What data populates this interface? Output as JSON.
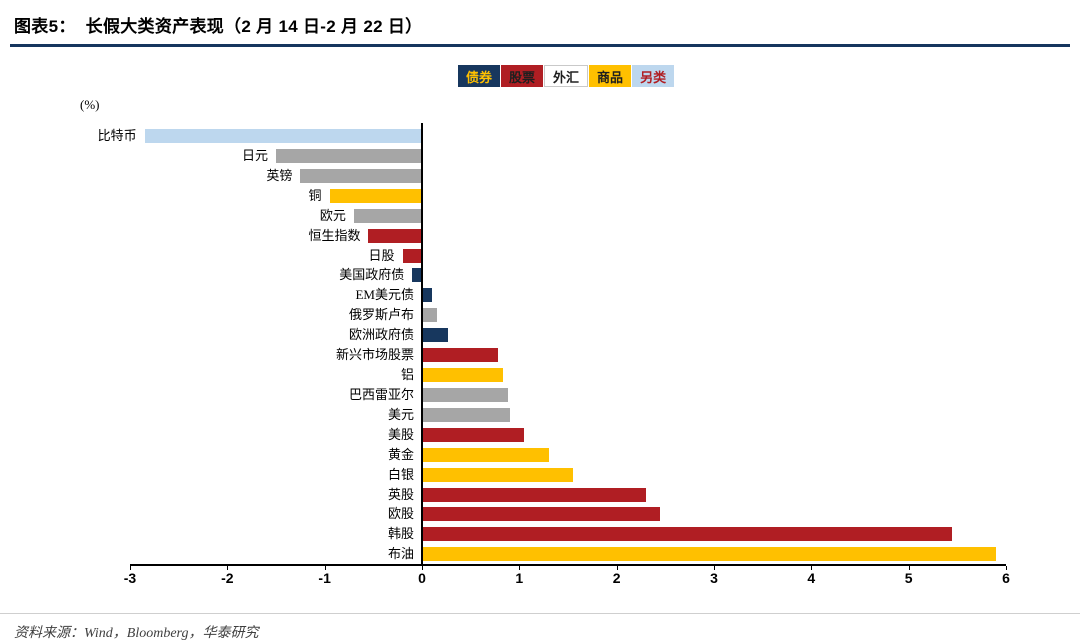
{
  "header": {
    "figure_label": "图表5：",
    "title": "长假大类资产表现（2 月 14 日-2 月 22 日）"
  },
  "chart": {
    "unit_label": "(%)"
  },
  "chart_data": {
    "type": "bar",
    "orientation": "horizontal",
    "title": "长假大类资产表现（2 月 14 日-2 月 22 日）",
    "unit": "%",
    "xlim": [
      -3,
      6
    ],
    "x_ticks": [
      -3,
      -2,
      -1,
      0,
      1,
      2,
      3,
      4,
      5,
      6
    ],
    "grid": false,
    "legend_position": "top",
    "category_colors": {
      "债券": "#17375E",
      "股票": "#B01E23",
      "外汇": "#A6A6A6",
      "商品": "#FFC000",
      "另类": "#BDD7EE"
    },
    "legend": [
      {
        "label": "债券",
        "swatch": "#17375E",
        "text_color": "#FFC000"
      },
      {
        "label": "股票",
        "swatch": "#B01E23",
        "text_color": "#1F1F1F"
      },
      {
        "label": "外汇",
        "swatch": "#FFFFFF",
        "text_color": "#1F1F1F"
      },
      {
        "label": "商品",
        "swatch": "#FFC000",
        "text_color": "#1F1F1F"
      },
      {
        "label": "另类",
        "swatch": "#BDD7EE",
        "text_color": "#B01E23"
      }
    ],
    "bars": [
      {
        "label": "比特币",
        "value": -2.85,
        "category": "另类"
      },
      {
        "label": "日元",
        "value": -1.5,
        "category": "外汇"
      },
      {
        "label": "英镑",
        "value": -1.25,
        "category": "外汇"
      },
      {
        "label": "铜",
        "value": -0.95,
        "category": "商品"
      },
      {
        "label": "欧元",
        "value": -0.7,
        "category": "外汇"
      },
      {
        "label": "恒生指数",
        "value": -0.55,
        "category": "股票"
      },
      {
        "label": "日股",
        "value": -0.2,
        "category": "股票"
      },
      {
        "label": "美国政府债",
        "value": -0.1,
        "category": "债券"
      },
      {
        "label": "EM美元债",
        "value": 0.1,
        "category": "债券"
      },
      {
        "label": "俄罗斯卢布",
        "value": 0.15,
        "category": "外汇"
      },
      {
        "label": "欧洲政府债",
        "value": 0.27,
        "category": "债券"
      },
      {
        "label": "新兴市场股票",
        "value": 0.78,
        "category": "股票"
      },
      {
        "label": "铝",
        "value": 0.83,
        "category": "商品"
      },
      {
        "label": "巴西雷亚尔",
        "value": 0.88,
        "category": "外汇"
      },
      {
        "label": "美元",
        "value": 0.9,
        "category": "外汇"
      },
      {
        "label": "美股",
        "value": 1.05,
        "category": "股票"
      },
      {
        "label": "黄金",
        "value": 1.3,
        "category": "商品"
      },
      {
        "label": "白银",
        "value": 1.55,
        "category": "商品"
      },
      {
        "label": "英股",
        "value": 2.3,
        "category": "股票"
      },
      {
        "label": "欧股",
        "value": 2.45,
        "category": "股票"
      },
      {
        "label": "韩股",
        "value": 5.45,
        "category": "股票"
      },
      {
        "label": "布油",
        "value": 5.9,
        "category": "商品"
      }
    ]
  },
  "footer": {
    "source": "资料来源：Wind，Bloomberg，华泰研究"
  }
}
